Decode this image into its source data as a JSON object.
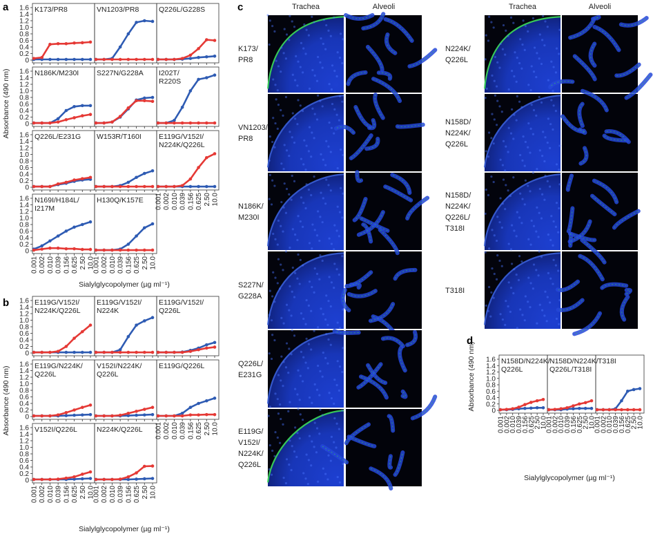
{
  "panel_letters": [
    "a",
    "b",
    "c",
    "d"
  ],
  "common": {
    "ylabel": "Absorbance (490 nm)",
    "xlabel": "Sialylglycopolymer (µg ml⁻¹)",
    "x_ticks": [
      "0.001",
      "0.002",
      "0.010",
      "0.039",
      "0.156",
      "0.625",
      "2.50",
      "10.0"
    ],
    "y_ticks": [
      "0",
      "0.2",
      "0.4",
      "0.6",
      "0.8",
      "1.0",
      "1.2",
      "1.4",
      "1.6"
    ],
    "ylim": [
      0,
      1.6
    ],
    "series_colors": [
      "#2e5bb3",
      "#e53935"
    ]
  },
  "chart_data": [
    {
      "panel": "a",
      "type": "line",
      "title": "K173/PR8",
      "series": [
        {
          "values": [
            0.02,
            0.02,
            0.02,
            0.02,
            0.02,
            0.02,
            0.02,
            0.02
          ]
        },
        {
          "values": [
            0.05,
            0.08,
            0.48,
            0.5,
            0.5,
            0.52,
            0.53,
            0.55
          ]
        }
      ]
    },
    {
      "panel": "a",
      "type": "line",
      "title": "VN1203/PR8",
      "series": [
        {
          "values": [
            0.02,
            0.02,
            0.05,
            0.4,
            0.8,
            1.15,
            1.2,
            1.18
          ]
        },
        {
          "values": [
            0.02,
            0.02,
            0.02,
            0.02,
            0.02,
            0.02,
            0.02,
            0.02
          ]
        }
      ]
    },
    {
      "panel": "a",
      "type": "line",
      "title": "Q226L/G228S",
      "series": [
        {
          "values": [
            0.02,
            0.02,
            0.02,
            0.03,
            0.05,
            0.08,
            0.1,
            0.12
          ]
        },
        {
          "values": [
            0.02,
            0.02,
            0.02,
            0.05,
            0.15,
            0.35,
            0.62,
            0.6
          ]
        }
      ]
    },
    {
      "panel": "a",
      "type": "line",
      "title": "N186K/M230I",
      "series": [
        {
          "values": [
            0.02,
            0.02,
            0.02,
            0.15,
            0.4,
            0.52,
            0.55,
            0.55
          ]
        },
        {
          "values": [
            0.02,
            0.02,
            0.02,
            0.05,
            0.12,
            0.18,
            0.24,
            0.28
          ]
        }
      ]
    },
    {
      "panel": "a",
      "type": "line",
      "title": "S227N/G228A",
      "series": [
        {
          "values": [
            0.02,
            0.02,
            0.05,
            0.2,
            0.45,
            0.72,
            0.78,
            0.8
          ]
        },
        {
          "values": [
            0.02,
            0.02,
            0.05,
            0.22,
            0.48,
            0.7,
            0.7,
            0.68
          ]
        }
      ]
    },
    {
      "panel": "a",
      "type": "line",
      "title": "I202T/\nR220S",
      "series": [
        {
          "values": [
            0.02,
            0.02,
            0.1,
            0.5,
            1.0,
            1.35,
            1.4,
            1.48
          ]
        },
        {
          "values": [
            0.02,
            0.02,
            0.02,
            0.02,
            0.02,
            0.02,
            0.02,
            0.02
          ]
        }
      ]
    },
    {
      "panel": "a",
      "type": "line",
      "title": "Q226L/E231G",
      "series": [
        {
          "values": [
            0.02,
            0.02,
            0.02,
            0.08,
            0.12,
            0.18,
            0.22,
            0.24
          ]
        },
        {
          "values": [
            0.02,
            0.02,
            0.02,
            0.1,
            0.15,
            0.22,
            0.26,
            0.3
          ]
        }
      ]
    },
    {
      "panel": "a",
      "type": "line",
      "title": "W153R/T160I",
      "series": [
        {
          "values": [
            0.02,
            0.02,
            0.02,
            0.05,
            0.15,
            0.3,
            0.42,
            0.5
          ]
        },
        {
          "values": [
            0.02,
            0.02,
            0.02,
            0.02,
            0.02,
            0.02,
            0.02,
            0.02
          ]
        }
      ]
    },
    {
      "panel": "a",
      "type": "line",
      "title": "E119G/V152I/\nN224K/Q226L",
      "series": [
        {
          "values": [
            0.02,
            0.02,
            0.02,
            0.02,
            0.02,
            0.02,
            0.02,
            0.02
          ]
        },
        {
          "values": [
            0.02,
            0.02,
            0.02,
            0.05,
            0.25,
            0.6,
            0.9,
            1.02
          ]
        }
      ]
    },
    {
      "panel": "a",
      "type": "line",
      "title": "N169I/H184L/\nI217M",
      "series": [
        {
          "values": [
            0.05,
            0.15,
            0.3,
            0.45,
            0.6,
            0.72,
            0.8,
            0.88
          ]
        },
        {
          "values": [
            0.02,
            0.05,
            0.08,
            0.08,
            0.06,
            0.06,
            0.04,
            0.04
          ]
        }
      ]
    },
    {
      "panel": "a",
      "type": "line",
      "title": "H130Q/K157E",
      "series": [
        {
          "values": [
            0.02,
            0.02,
            0.02,
            0.05,
            0.2,
            0.45,
            0.7,
            0.82
          ]
        },
        {
          "values": [
            0.02,
            0.02,
            0.02,
            0.02,
            0.02,
            0.02,
            0.02,
            0.02
          ]
        }
      ]
    },
    {
      "panel": "b",
      "type": "line",
      "title": "E119G/V152I/\nN224K/Q226L",
      "series": [
        {
          "values": [
            0.02,
            0.02,
            0.02,
            0.02,
            0.02,
            0.02,
            0.02,
            0.02
          ]
        },
        {
          "values": [
            0.02,
            0.02,
            0.02,
            0.05,
            0.2,
            0.45,
            0.65,
            0.85
          ]
        }
      ]
    },
    {
      "panel": "b",
      "type": "line",
      "title": "E119G/V152I/\nN224K",
      "series": [
        {
          "values": [
            0.02,
            0.02,
            0.02,
            0.1,
            0.5,
            0.85,
            0.98,
            1.08
          ]
        },
        {
          "values": [
            0.02,
            0.02,
            0.02,
            0.02,
            0.02,
            0.02,
            0.02,
            0.02
          ]
        }
      ]
    },
    {
      "panel": "b",
      "type": "line",
      "title": "E119G/V152I/\nQ226L",
      "series": [
        {
          "values": [
            0.02,
            0.02,
            0.02,
            0.03,
            0.08,
            0.15,
            0.25,
            0.32
          ]
        },
        {
          "values": [
            0.02,
            0.02,
            0.02,
            0.02,
            0.05,
            0.1,
            0.15,
            0.18
          ]
        }
      ]
    },
    {
      "panel": "b",
      "type": "line",
      "title": "E119G/N224K/\nQ226L",
      "series": [
        {
          "values": [
            0.02,
            0.02,
            0.02,
            0.02,
            0.03,
            0.04,
            0.05,
            0.06
          ]
        },
        {
          "values": [
            0.02,
            0.02,
            0.02,
            0.05,
            0.12,
            0.2,
            0.28,
            0.35
          ]
        }
      ]
    },
    {
      "panel": "b",
      "type": "line",
      "title": "V152I/N224K/\nQ226L",
      "series": [
        {
          "values": [
            0.02,
            0.02,
            0.02,
            0.02,
            0.03,
            0.04,
            0.05,
            0.06
          ]
        },
        {
          "values": [
            0.02,
            0.02,
            0.02,
            0.04,
            0.1,
            0.16,
            0.22,
            0.28
          ]
        }
      ]
    },
    {
      "panel": "b",
      "type": "line",
      "title": "E119G/Q226L",
      "series": [
        {
          "values": [
            0.02,
            0.02,
            0.02,
            0.1,
            0.28,
            0.4,
            0.48,
            0.56
          ]
        },
        {
          "values": [
            0.02,
            0.02,
            0.02,
            0.02,
            0.05,
            0.05,
            0.06,
            0.06
          ]
        }
      ]
    },
    {
      "panel": "b",
      "type": "line",
      "title": "V152I/Q226L",
      "series": [
        {
          "values": [
            0.02,
            0.02,
            0.02,
            0.02,
            0.02,
            0.03,
            0.04,
            0.05
          ]
        },
        {
          "values": [
            0.02,
            0.02,
            0.02,
            0.03,
            0.06,
            0.1,
            0.18,
            0.25
          ]
        }
      ]
    },
    {
      "panel": "b",
      "type": "line",
      "title": "N224K/Q226L",
      "series": [
        {
          "values": [
            0.02,
            0.02,
            0.02,
            0.02,
            0.02,
            0.03,
            0.04,
            0.05
          ]
        },
        {
          "values": [
            0.02,
            0.02,
            0.02,
            0.03,
            0.1,
            0.22,
            0.42,
            0.43
          ]
        }
      ]
    },
    {
      "panel": "d",
      "type": "line",
      "title": "N158D/N224K/\nQ226L",
      "series": [
        {
          "values": [
            0.02,
            0.02,
            0.03,
            0.05,
            0.06,
            0.07,
            0.08,
            0.08
          ]
        },
        {
          "values": [
            0.02,
            0.03,
            0.05,
            0.1,
            0.18,
            0.25,
            0.3,
            0.34
          ]
        }
      ]
    },
    {
      "panel": "d",
      "type": "line",
      "title": "N158D/N224K/\nQ226L/T318I",
      "series": [
        {
          "values": [
            0.02,
            0.02,
            0.02,
            0.04,
            0.05,
            0.06,
            0.06,
            0.06
          ]
        },
        {
          "values": [
            0.02,
            0.03,
            0.05,
            0.08,
            0.14,
            0.2,
            0.24,
            0.3
          ]
        }
      ]
    },
    {
      "panel": "d",
      "type": "line",
      "title": "T318I",
      "series": [
        {
          "values": [
            0.02,
            0.02,
            0.02,
            0.05,
            0.3,
            0.6,
            0.65,
            0.68
          ]
        },
        {
          "values": [
            0.02,
            0.02,
            0.02,
            0.02,
            0.02,
            0.02,
            0.02,
            0.02
          ]
        }
      ]
    }
  ],
  "panel_c": {
    "column_headers": [
      "Trachea",
      "Alveoli"
    ],
    "left_rows": [
      "K173/\nPR8",
      "VN1203/\nPR8",
      "N186K/\nM230I",
      "S227N/\nG228A",
      "Q226L/\nE231G",
      "E119G/\nV152I/\nN224K/\nQ226L"
    ],
    "right_rows": [
      "N224K/\nQ226L",
      "N158D/\nN224K/\nQ226L",
      "N158D/\nN224K/\nQ226L/\nT318I",
      "T318I"
    ]
  }
}
